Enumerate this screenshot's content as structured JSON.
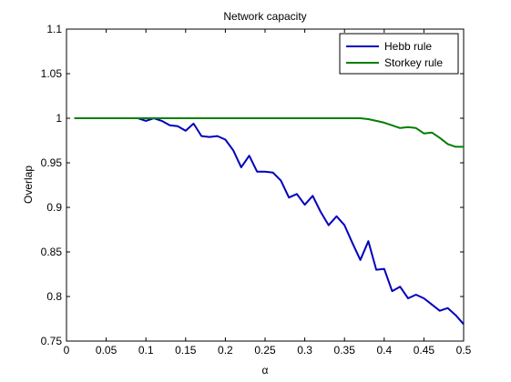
{
  "chart_data": {
    "type": "line",
    "title": "Network capacity",
    "xlabel": "α",
    "ylabel": "Overlap",
    "xlim": [
      0,
      0.5
    ],
    "ylim": [
      0.75,
      1.1
    ],
    "xticks": [
      "0",
      "0.05",
      "0.1",
      "0.15",
      "0.2",
      "0.25",
      "0.3",
      "0.35",
      "0.4",
      "0.45",
      "0.5"
    ],
    "yticks": [
      "0.75",
      "0.8",
      "0.85",
      "0.9",
      "0.95",
      "1",
      "1.05",
      "1.1"
    ],
    "grid": false,
    "legend_position": "top-right",
    "x": [
      0.01,
      0.02,
      0.03,
      0.04,
      0.05,
      0.06,
      0.07,
      0.08,
      0.09,
      0.1,
      0.11,
      0.12,
      0.13,
      0.14,
      0.15,
      0.16,
      0.17,
      0.18,
      0.19,
      0.2,
      0.21,
      0.22,
      0.23,
      0.24,
      0.25,
      0.26,
      0.27,
      0.28,
      0.29,
      0.3,
      0.31,
      0.32,
      0.33,
      0.34,
      0.35,
      0.36,
      0.37,
      0.38,
      0.39,
      0.4,
      0.41,
      0.42,
      0.43,
      0.44,
      0.45,
      0.46,
      0.47,
      0.48,
      0.49,
      0.5
    ],
    "series": [
      {
        "name": "Hebb rule",
        "color": "#0000bf",
        "values": [
          1.0,
          1.0,
          1.0,
          1.0,
          1.0,
          1.0,
          1.0,
          1.0,
          1.0,
          0.997,
          1.0,
          0.997,
          0.992,
          0.991,
          0.986,
          0.994,
          0.98,
          0.979,
          0.98,
          0.976,
          0.964,
          0.945,
          0.958,
          0.94,
          0.94,
          0.939,
          0.93,
          0.911,
          0.915,
          0.903,
          0.913,
          0.895,
          0.88,
          0.89,
          0.88,
          0.86,
          0.841,
          0.862,
          0.83,
          0.831,
          0.806,
          0.811,
          0.798,
          0.802,
          0.798,
          0.791,
          0.784,
          0.787,
          0.779,
          0.769
        ]
      },
      {
        "name": "Storkey rule",
        "color": "#007f00",
        "values": [
          1.0,
          1.0,
          1.0,
          1.0,
          1.0,
          1.0,
          1.0,
          1.0,
          1.0,
          1.0,
          1.0,
          1.0,
          1.0,
          1.0,
          1.0,
          1.0,
          1.0,
          1.0,
          1.0,
          1.0,
          1.0,
          1.0,
          1.0,
          1.0,
          1.0,
          1.0,
          1.0,
          1.0,
          1.0,
          1.0,
          1.0,
          1.0,
          1.0,
          1.0,
          1.0,
          1.0,
          1.0,
          0.999,
          0.997,
          0.995,
          0.992,
          0.989,
          0.99,
          0.989,
          0.983,
          0.984,
          0.978,
          0.971,
          0.968,
          0.968
        ]
      }
    ]
  }
}
